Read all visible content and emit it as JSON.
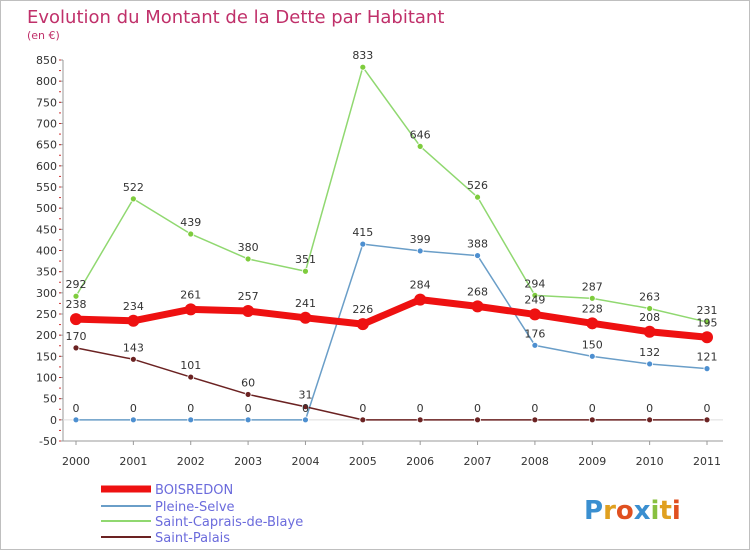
{
  "chart_data": {
    "type": "line",
    "title": "Evolution du Montant de la Dette par Habitant",
    "subtitle": "(en €)",
    "x": [
      "2000",
      "2001",
      "2002",
      "2003",
      "2004",
      "2005",
      "2006",
      "2007",
      "2008",
      "2009",
      "2010",
      "2011"
    ],
    "ylim": [
      -50,
      850
    ],
    "yticks": [
      -50,
      0,
      50,
      100,
      150,
      200,
      250,
      300,
      350,
      400,
      450,
      500,
      550,
      600,
      650,
      700,
      750,
      800,
      850
    ],
    "grid": false,
    "legend_position": "bottom-left",
    "series": [
      {
        "name": "BOISREDON",
        "values": [
          238,
          234,
          261,
          257,
          241,
          226,
          284,
          268,
          249,
          228,
          208,
          195
        ],
        "color": "#ee1111"
      },
      {
        "name": "Pleine-Selve",
        "values": [
          0,
          0,
          0,
          0,
          0,
          415,
          399,
          388,
          176,
          150,
          132,
          121
        ],
        "color": "#6a9ec8"
      },
      {
        "name": "Saint-Caprais-de-Blaye",
        "values": [
          292,
          522,
          439,
          380,
          351,
          833,
          646,
          526,
          294,
          287,
          263,
          231
        ],
        "color": "#90d870"
      },
      {
        "name": "Saint-Palais",
        "values": [
          170,
          143,
          101,
          60,
          31,
          0,
          0,
          0,
          0,
          0,
          0,
          0
        ],
        "color": "#6b2222"
      }
    ]
  },
  "branding": {
    "logo_text": "Proxiti"
  }
}
